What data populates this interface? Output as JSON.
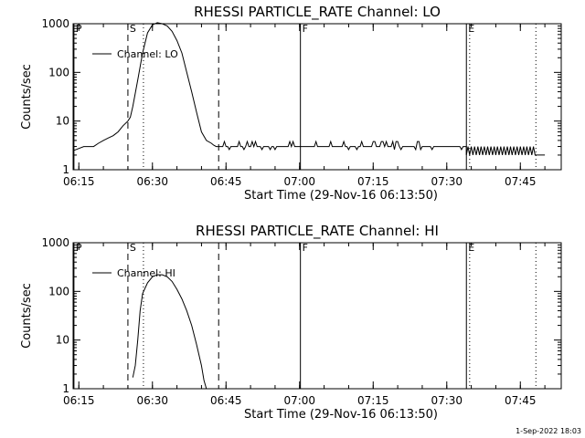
{
  "footer": {
    "timestamp": "1-Sep-2022 18:03"
  },
  "chart_data": [
    {
      "type": "line",
      "title": "RHESSI PARTICLE_RATE Channel: LO",
      "xlabel": "Start Time (29-Nov-16 06:13:50)",
      "ylabel": "Counts/sec",
      "y_scale": "log",
      "ylim": [
        1,
        1000
      ],
      "xlim": [
        "06:13:50",
        "07:53:20"
      ],
      "x_ticks": [
        "06:15",
        "06:30",
        "06:45",
        "07:00",
        "07:15",
        "07:30",
        "07:45"
      ],
      "y_ticks": [
        "1",
        "10",
        "100",
        "1000"
      ],
      "legend": {
        "entries": [
          "Channel: LO"
        ],
        "placement": "top-left"
      },
      "grid": false,
      "markers": [
        {
          "label": "P",
          "time": "06:14:00",
          "style": "solid"
        },
        {
          "label": "S",
          "time": "06:25:00",
          "style": "dashed"
        },
        {
          "time": "06:28:10",
          "style": "dotted"
        },
        {
          "time": "06:43:30",
          "style": "dashed"
        },
        {
          "label": "F",
          "time": "07:00:10",
          "style": "solid"
        },
        {
          "label": "E",
          "time": "07:34:00",
          "style": "solid"
        },
        {
          "time": "07:34:40",
          "style": "dotted"
        },
        {
          "time": "07:48:10",
          "style": "dotted"
        }
      ],
      "series": [
        {
          "values_description": "piecewise",
          "segments": [
            {
              "times": [
                "06:14:00",
                "06:16:00",
                "06:18:00",
                "06:19:00",
                "06:20:00",
                "06:21:00",
                "06:22:00",
                "06:23:00",
                "06:24:00",
                "06:25:00",
                "06:25:30",
                "06:26:00",
                "06:27:00",
                "06:28:00",
                "06:29:00",
                "06:30:00",
                "06:31:00",
                "06:32:00",
                "06:33:00",
                "06:34:00",
                "06:35:00",
                "06:36:00",
                "06:37:00",
                "06:38:00",
                "06:39:00",
                "06:40:00",
                "06:41:00",
                "06:42:00",
                "06:42:30",
                "06:43:00",
                "06:44:00"
              ],
              "values": [
                2.5,
                3,
                3,
                3.5,
                4,
                4.5,
                5,
                6,
                8,
                10,
                12,
                20,
                70,
                250,
                650,
                950,
                1050,
                1000,
                900,
                700,
                450,
                250,
                100,
                40,
                15,
                6,
                4,
                3.5,
                3.2,
                3,
                3
              ]
            },
            {
              "times": [
                "06:44:00",
                "07:00:00"
              ],
              "values": [
                3,
                3
              ],
              "note": "noise around 3"
            },
            {
              "times": [
                "07:00:00",
                "07:34:00"
              ],
              "values": [
                3,
                3
              ],
              "note": "noise around 3"
            },
            {
              "times": [
                "07:34:00",
                "07:48:00"
              ],
              "values": [
                2.5,
                2.5
              ],
              "note": "oscillating 2-3"
            },
            {
              "times": [
                "07:48:00",
                "07:50:00"
              ],
              "values": [
                2,
                2
              ]
            }
          ]
        }
      ]
    },
    {
      "type": "line",
      "title": "RHESSI PARTICLE_RATE Channel: HI",
      "xlabel": "Start Time (29-Nov-16 06:13:50)",
      "ylabel": "Counts/sec",
      "y_scale": "log",
      "ylim": [
        1,
        1000
      ],
      "xlim": [
        "06:13:50",
        "07:53:20"
      ],
      "x_ticks": [
        "06:15",
        "06:30",
        "06:45",
        "07:00",
        "07:15",
        "07:30",
        "07:45"
      ],
      "y_ticks": [
        "1",
        "10",
        "100",
        "1000"
      ],
      "legend": {
        "entries": [
          "Channel: HI"
        ],
        "placement": "top-left"
      },
      "grid": false,
      "markers": [
        {
          "label": "P",
          "time": "06:14:00",
          "style": "solid"
        },
        {
          "label": "S",
          "time": "06:25:00",
          "style": "dashed"
        },
        {
          "time": "06:28:10",
          "style": "dotted"
        },
        {
          "time": "06:43:30",
          "style": "dashed"
        },
        {
          "label": "F",
          "time": "07:00:10",
          "style": "solid"
        },
        {
          "label": "E",
          "time": "07:34:00",
          "style": "solid"
        },
        {
          "time": "07:34:40",
          "style": "dotted"
        },
        {
          "time": "07:48:10",
          "style": "dotted"
        }
      ],
      "series": [
        {
          "times": [
            "06:26:00",
            "06:26:30",
            "06:27:00",
            "06:27:30",
            "06:28:00",
            "06:29:00",
            "06:30:00",
            "06:31:00",
            "06:32:00",
            "06:33:00",
            "06:34:00",
            "06:35:00",
            "06:36:00",
            "06:37:00",
            "06:38:00",
            "06:39:00",
            "06:40:00",
            "06:40:30",
            "06:41:00"
          ],
          "values": [
            1.7,
            3,
            10,
            40,
            90,
            150,
            200,
            220,
            220,
            200,
            160,
            110,
            70,
            40,
            20,
            8,
            3,
            1.5,
            1
          ]
        }
      ]
    }
  ]
}
